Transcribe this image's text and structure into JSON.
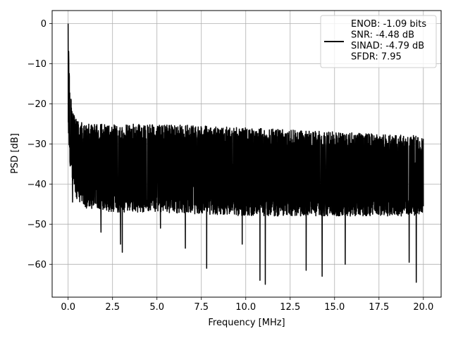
{
  "chart_data": {
    "type": "line",
    "title": "",
    "xlabel": "Frequency [MHz]",
    "ylabel": "PSD [dB]",
    "xlim": [
      -0.9,
      21.0
    ],
    "ylim": [
      -68.2,
      3.25
    ],
    "xticks": [
      0.0,
      2.5,
      5.0,
      7.5,
      10.0,
      12.5,
      15.0,
      17.5,
      20.0
    ],
    "xtick_labels": [
      "0.0",
      "2.5",
      "5.0",
      "7.5",
      "10.0",
      "12.5",
      "15.0",
      "17.5",
      "20.0"
    ],
    "yticks": [
      0,
      -10,
      -20,
      -30,
      -40,
      -50,
      -60
    ],
    "ytick_labels": [
      "0",
      "−10",
      "−20",
      "−30",
      "−40",
      "−50",
      "−60"
    ],
    "grid": true,
    "legend_position": "upper right",
    "series": [
      {
        "name": "ENOB: -1.09 bits\nSNR: -4.48 dB\nSINAD: -4.79 dB\nSFDR: 7.95",
        "color": "#000000",
        "peak": {
          "x": 0.0,
          "y": 0.0
        },
        "envelope": [
          {
            "x": 0.0,
            "top": 0,
            "bottom": -25
          },
          {
            "x": 0.05,
            "top": -10,
            "bottom": -30
          },
          {
            "x": 0.1,
            "top": -17,
            "bottom": -36
          },
          {
            "x": 0.3,
            "top": -22,
            "bottom": -40
          },
          {
            "x": 0.5,
            "top": -24,
            "bottom": -44
          },
          {
            "x": 1.0,
            "top": -25,
            "bottom": -46
          },
          {
            "x": 2.5,
            "top": -25,
            "bottom": -47
          },
          {
            "x": 5.0,
            "top": -25,
            "bottom": -47
          },
          {
            "x": 10.0,
            "top": -26,
            "bottom": -48
          },
          {
            "x": 15.0,
            "top": -27,
            "bottom": -48
          },
          {
            "x": 20.0,
            "top": -28,
            "bottom": -48
          }
        ],
        "notable_dips": [
          {
            "x": 0.25,
            "y": -44.5
          },
          {
            "x": 1.85,
            "y": -52
          },
          {
            "x": 2.95,
            "y": -55
          },
          {
            "x": 3.05,
            "y": -57
          },
          {
            "x": 5.2,
            "y": -51
          },
          {
            "x": 6.6,
            "y": -56
          },
          {
            "x": 7.8,
            "y": -61
          },
          {
            "x": 9.8,
            "y": -55
          },
          {
            "x": 10.8,
            "y": -64
          },
          {
            "x": 11.1,
            "y": -65
          },
          {
            "x": 13.4,
            "y": -61.5
          },
          {
            "x": 14.3,
            "y": -63
          },
          {
            "x": 15.6,
            "y": -60
          },
          {
            "x": 19.2,
            "y": -59.5
          },
          {
            "x": 19.6,
            "y": -64.5
          }
        ]
      }
    ]
  }
}
